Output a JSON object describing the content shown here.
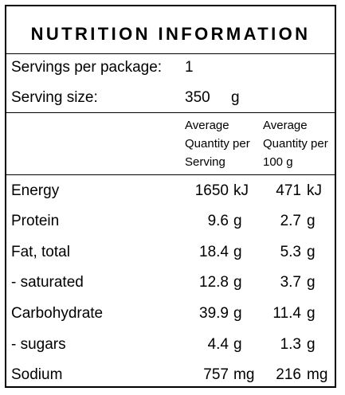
{
  "title": "NUTRITION INFORMATION",
  "servings_label": "Servings per package:",
  "servings_value": "1",
  "serving_size_label": "Serving size:",
  "serving_size_value": "350",
  "serving_size_unit": "g",
  "col_per_serving": [
    "Average",
    "Quantity per",
    "Serving"
  ],
  "col_per_100g": [
    "Average",
    "Quantity per",
    "100 g"
  ],
  "rows": [
    {
      "name": "Energy",
      "serving": "1650",
      "s_unit": "kJ",
      "per100": "471",
      "p_unit": "kJ"
    },
    {
      "name": "Protein",
      "serving": "9.6",
      "s_unit": "g",
      "per100": "2.7",
      "p_unit": "g"
    },
    {
      "name": "Fat, total",
      "serving": "18.4",
      "s_unit": "g",
      "per100": "5.3",
      "p_unit": "g"
    },
    {
      "name": "- saturated",
      "serving": "12.8",
      "s_unit": "g",
      "per100": "3.7",
      "p_unit": "g"
    },
    {
      "name": "Carbohydrate",
      "serving": "39.9",
      "s_unit": "g",
      "per100": "11.4",
      "p_unit": "g"
    },
    {
      "name": "- sugars",
      "serving": "4.4",
      "s_unit": "g",
      "per100": "1.3",
      "p_unit": "g"
    },
    {
      "name": "Sodium",
      "serving": "757",
      "s_unit": "mg",
      "per100": "216",
      "p_unit": "mg"
    }
  ]
}
